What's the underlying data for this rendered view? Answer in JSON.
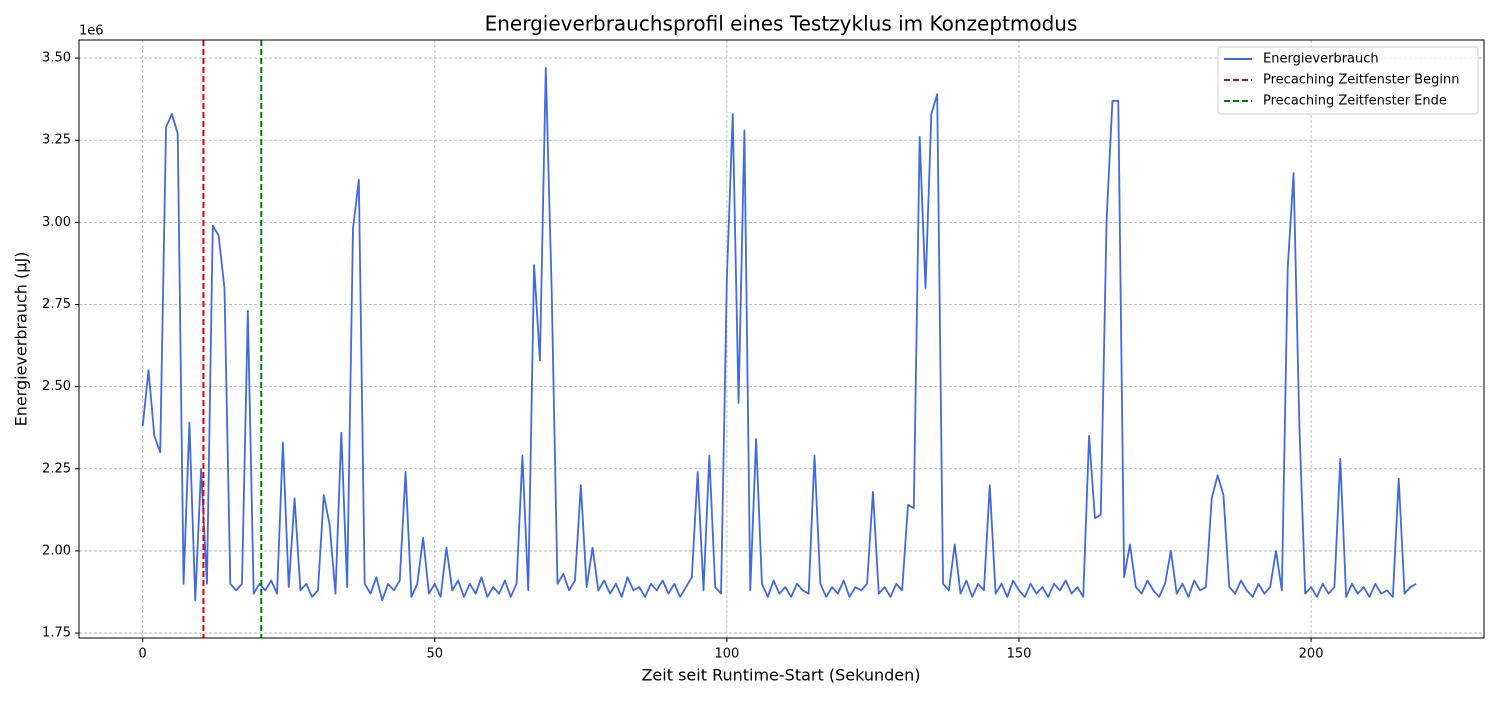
{
  "chart_data": {
    "type": "line",
    "title": "Energieverbrauchsprofil eines Testzyklus im Konzeptmodus",
    "x_label": "Zeit seit Runtime-Start (Sekunden)",
    "y_label": "Energieverbrauch (µJ)",
    "y_offset_label": "1e6",
    "x": [
      0,
      1,
      2,
      3,
      4,
      5,
      6,
      7,
      8,
      9,
      10,
      11,
      12,
      13,
      14,
      15,
      16,
      17,
      18,
      19,
      20,
      21,
      22,
      23,
      24,
      25,
      26,
      27,
      28,
      29,
      30,
      31,
      32,
      33,
      34,
      35,
      36,
      37,
      38,
      39,
      40,
      41,
      42,
      43,
      44,
      45,
      46,
      47,
      48,
      49,
      50,
      51,
      52,
      53,
      54,
      55,
      56,
      57,
      58,
      59,
      60,
      61,
      62,
      63,
      64,
      65,
      66,
      67,
      68,
      69,
      70,
      71,
      72,
      73,
      74,
      75,
      76,
      77,
      78,
      79,
      80,
      81,
      82,
      83,
      84,
      85,
      86,
      87,
      88,
      89,
      90,
      91,
      92,
      93,
      94,
      95,
      96,
      97,
      98,
      99,
      100,
      101,
      102,
      103,
      104,
      105,
      106,
      107,
      108,
      109,
      110,
      111,
      112,
      113,
      114,
      115,
      116,
      117,
      118,
      119,
      120,
      121,
      122,
      123,
      124,
      125,
      126,
      127,
      128,
      129,
      130,
      131,
      132,
      133,
      134,
      135,
      136,
      137,
      138,
      139,
      140,
      141,
      142,
      143,
      144,
      145,
      146,
      147,
      148,
      149,
      150,
      151,
      152,
      153,
      154,
      155,
      156,
      157,
      158,
      159,
      160,
      161,
      162,
      163,
      164,
      165,
      166,
      167,
      168,
      169,
      170,
      171,
      172,
      173,
      174,
      175,
      176,
      177,
      178,
      179,
      180,
      181,
      182,
      183,
      184,
      185,
      186,
      187,
      188,
      189,
      190,
      191,
      192,
      193,
      194,
      195,
      196,
      197,
      198,
      199,
      200,
      201,
      202,
      203,
      204,
      205,
      206,
      207,
      208,
      209,
      210,
      211,
      212,
      213,
      214,
      215,
      216,
      217,
      218
    ],
    "series": [
      {
        "name": "Energieverbrauch",
        "color": "#4169e1",
        "values": [
          2.38,
          2.55,
          2.35,
          2.3,
          3.29,
          3.33,
          3.27,
          1.9,
          2.39,
          1.85,
          2.25,
          1.9,
          2.99,
          2.96,
          2.8,
          1.9,
          1.88,
          1.9,
          2.73,
          1.87,
          1.9,
          1.88,
          1.91,
          1.87,
          2.33,
          1.89,
          2.16,
          1.88,
          1.9,
          1.86,
          1.88,
          2.17,
          2.08,
          1.87,
          2.36,
          1.89,
          2.98,
          3.13,
          1.9,
          1.87,
          1.92,
          1.85,
          1.9,
          1.88,
          1.91,
          2.24,
          1.86,
          1.9,
          2.04,
          1.87,
          1.9,
          1.86,
          2.01,
          1.88,
          1.91,
          1.86,
          1.9,
          1.87,
          1.92,
          1.86,
          1.89,
          1.87,
          1.91,
          1.86,
          1.9,
          2.29,
          1.88,
          2.87,
          2.58,
          3.47,
          2.8,
          1.9,
          1.93,
          1.88,
          1.91,
          2.2,
          1.89,
          2.01,
          1.88,
          1.91,
          1.87,
          1.9,
          1.86,
          1.92,
          1.88,
          1.89,
          1.86,
          1.9,
          1.88,
          1.91,
          1.87,
          1.9,
          1.86,
          1.89,
          1.92,
          2.24,
          1.88,
          2.29,
          1.89,
          1.87,
          2.83,
          3.33,
          2.45,
          3.28,
          1.88,
          2.34,
          1.9,
          1.86,
          1.91,
          1.87,
          1.89,
          1.86,
          1.9,
          1.88,
          1.87,
          2.29,
          1.9,
          1.86,
          1.89,
          1.87,
          1.91,
          1.86,
          1.89,
          1.88,
          1.9,
          2.18,
          1.87,
          1.89,
          1.86,
          1.9,
          1.88,
          2.14,
          2.13,
          3.26,
          2.8,
          3.33,
          3.39,
          1.9,
          1.88,
          2.02,
          1.87,
          1.91,
          1.86,
          1.9,
          1.88,
          2.2,
          1.87,
          1.9,
          1.86,
          1.91,
          1.88,
          1.86,
          1.9,
          1.87,
          1.89,
          1.86,
          1.9,
          1.88,
          1.91,
          1.87,
          1.89,
          1.86,
          2.35,
          2.1,
          2.11,
          3.01,
          3.37,
          3.37,
          1.92,
          2.02,
          1.89,
          1.87,
          1.91,
          1.88,
          1.86,
          1.9,
          2.0,
          1.87,
          1.9,
          1.86,
          1.91,
          1.88,
          1.89,
          2.16,
          2.23,
          2.17,
          1.89,
          1.87,
          1.91,
          1.88,
          1.86,
          1.9,
          1.87,
          1.89,
          2.0,
          1.88,
          2.86,
          3.15,
          2.38,
          1.87,
          1.89,
          1.86,
          1.9,
          1.87,
          1.89,
          2.28,
          1.86,
          1.9,
          1.87,
          1.89,
          1.86,
          1.9,
          1.87,
          1.88,
          1.86,
          2.22,
          1.87,
          1.89,
          1.9
        ]
      }
    ],
    "vlines": [
      {
        "name": "Precaching Zeitfenster Beginn",
        "x": 10.4,
        "color": "#e00000"
      },
      {
        "name": "Precaching Zeitfenster Ende",
        "x": 20.3,
        "color": "#008000"
      }
    ],
    "xlim": [
      -10.9,
      229.6
    ],
    "xticks": [
      0,
      50,
      100,
      150,
      200
    ],
    "ylim": [
      1.735,
      3.555
    ],
    "yticks": [
      1.75,
      {
        "value": 2,
        "label": "2.00"
      },
      2.25,
      {
        "value": 2.5,
        "label": "2.50"
      },
      2.75,
      {
        "value": 3,
        "label": "3.00"
      },
      3.25,
      {
        "value": 3.5,
        "label": "3.50"
      }
    ],
    "grid": true,
    "legend": "upper right"
  }
}
